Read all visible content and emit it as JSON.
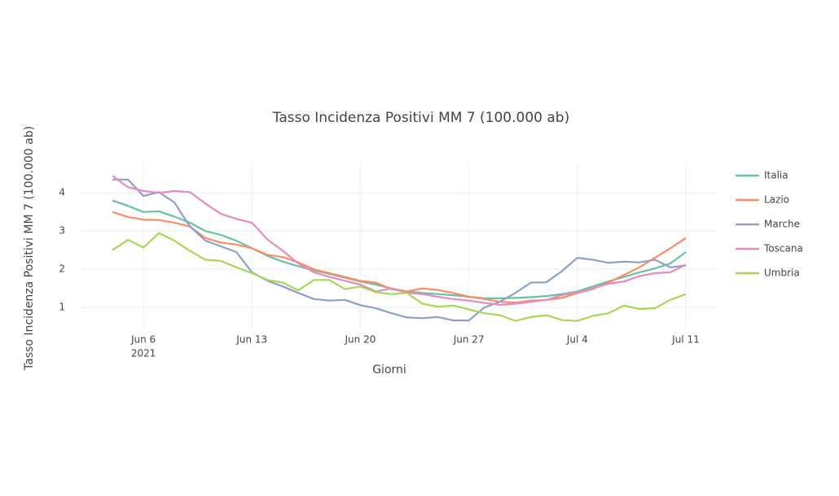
{
  "chart_data": {
    "type": "line",
    "title": "Tasso Incidenza Positivi MM 7 (100.000 ab)",
    "x_label": "Giorni",
    "y_label": "Tasso Incidenza Positivi MM 7 (100.000 ab)",
    "x": [
      "2021-06-04",
      "2021-06-05",
      "2021-06-06",
      "2021-06-07",
      "2021-06-08",
      "2021-06-09",
      "2021-06-10",
      "2021-06-11",
      "2021-06-12",
      "2021-06-13",
      "2021-06-14",
      "2021-06-15",
      "2021-06-16",
      "2021-06-17",
      "2021-06-18",
      "2021-06-19",
      "2021-06-20",
      "2021-06-21",
      "2021-06-22",
      "2021-06-23",
      "2021-06-24",
      "2021-06-25",
      "2021-06-26",
      "2021-06-27",
      "2021-06-28",
      "2021-06-29",
      "2021-06-30",
      "2021-07-01",
      "2021-07-02",
      "2021-07-03",
      "2021-07-04",
      "2021-07-05",
      "2021-07-06",
      "2021-07-07",
      "2021-07-08",
      "2021-07-09",
      "2021-07-10",
      "2021-07-11"
    ],
    "series": [
      {
        "name": "Italia",
        "color": "#66c2a5",
        "values": [
          3.8,
          3.66,
          3.5,
          3.52,
          3.38,
          3.22,
          3.0,
          2.9,
          2.75,
          2.55,
          2.35,
          2.2,
          2.08,
          1.97,
          1.88,
          1.78,
          1.68,
          1.6,
          1.5,
          1.42,
          1.38,
          1.35,
          1.32,
          1.28,
          1.24,
          1.24,
          1.25,
          1.27,
          1.3,
          1.35,
          1.42,
          1.55,
          1.68,
          1.8,
          1.92,
          2.02,
          2.15,
          2.45
        ]
      },
      {
        "name": "Lazio",
        "color": "#fc8d62",
        "values": [
          3.5,
          3.37,
          3.3,
          3.29,
          3.22,
          3.12,
          2.82,
          2.7,
          2.65,
          2.55,
          2.38,
          2.32,
          2.18,
          2.0,
          1.9,
          1.8,
          1.7,
          1.65,
          1.48,
          1.42,
          1.5,
          1.46,
          1.38,
          1.28,
          1.22,
          1.15,
          1.13,
          1.18,
          1.2,
          1.25,
          1.38,
          1.48,
          1.65,
          1.85,
          2.05,
          2.3,
          2.55,
          2.82
        ]
      },
      {
        "name": "Marche",
        "color": "#8da0cb",
        "values": [
          4.35,
          4.35,
          3.92,
          4.02,
          3.75,
          3.12,
          2.75,
          2.6,
          2.45,
          1.92,
          1.7,
          1.55,
          1.38,
          1.22,
          1.18,
          1.2,
          1.06,
          0.98,
          0.85,
          0.74,
          0.72,
          0.75,
          0.66,
          0.66,
          1.0,
          1.15,
          1.38,
          1.65,
          1.66,
          1.95,
          2.3,
          2.25,
          2.17,
          2.2,
          2.18,
          2.25,
          2.05,
          2.1
        ]
      },
      {
        "name": "Toscana",
        "color": "#e78ac3",
        "values": [
          4.45,
          4.15,
          4.05,
          4.0,
          4.05,
          4.02,
          3.72,
          3.45,
          3.32,
          3.22,
          2.78,
          2.48,
          2.15,
          1.92,
          1.8,
          1.7,
          1.6,
          1.42,
          1.5,
          1.38,
          1.35,
          1.28,
          1.22,
          1.18,
          1.12,
          1.07,
          1.1,
          1.15,
          1.2,
          1.32,
          1.4,
          1.5,
          1.62,
          1.68,
          1.82,
          1.9,
          1.92,
          2.12
        ]
      },
      {
        "name": "Umbria",
        "color": "#a6d854",
        "values": [
          2.5,
          2.77,
          2.57,
          2.95,
          2.75,
          2.48,
          2.25,
          2.22,
          2.05,
          1.9,
          1.72,
          1.65,
          1.45,
          1.72,
          1.72,
          1.48,
          1.55,
          1.4,
          1.35,
          1.38,
          1.1,
          1.02,
          1.05,
          0.95,
          0.85,
          0.8,
          0.65,
          0.75,
          0.8,
          0.67,
          0.65,
          0.78,
          0.85,
          1.05,
          0.96,
          0.98,
          1.2,
          1.35
        ]
      }
    ],
    "xlim": [
      "2021-06-02",
      "2021-07-13"
    ],
    "xticks": [
      {
        "value": "2021-06-06",
        "label": "Jun 6",
        "year": "2021"
      },
      {
        "value": "2021-06-13",
        "label": "Jun 13"
      },
      {
        "value": "2021-06-20",
        "label": "Jun 20"
      },
      {
        "value": "2021-06-27",
        "label": "Jun 27"
      },
      {
        "value": "2021-07-04",
        "label": "Jul 4"
      },
      {
        "value": "2021-07-11",
        "label": "Jul 11"
      }
    ],
    "ylim": [
      0.45,
      4.75
    ],
    "yticks": [
      1,
      2,
      3,
      4
    ],
    "grid": true,
    "legend": "right"
  }
}
